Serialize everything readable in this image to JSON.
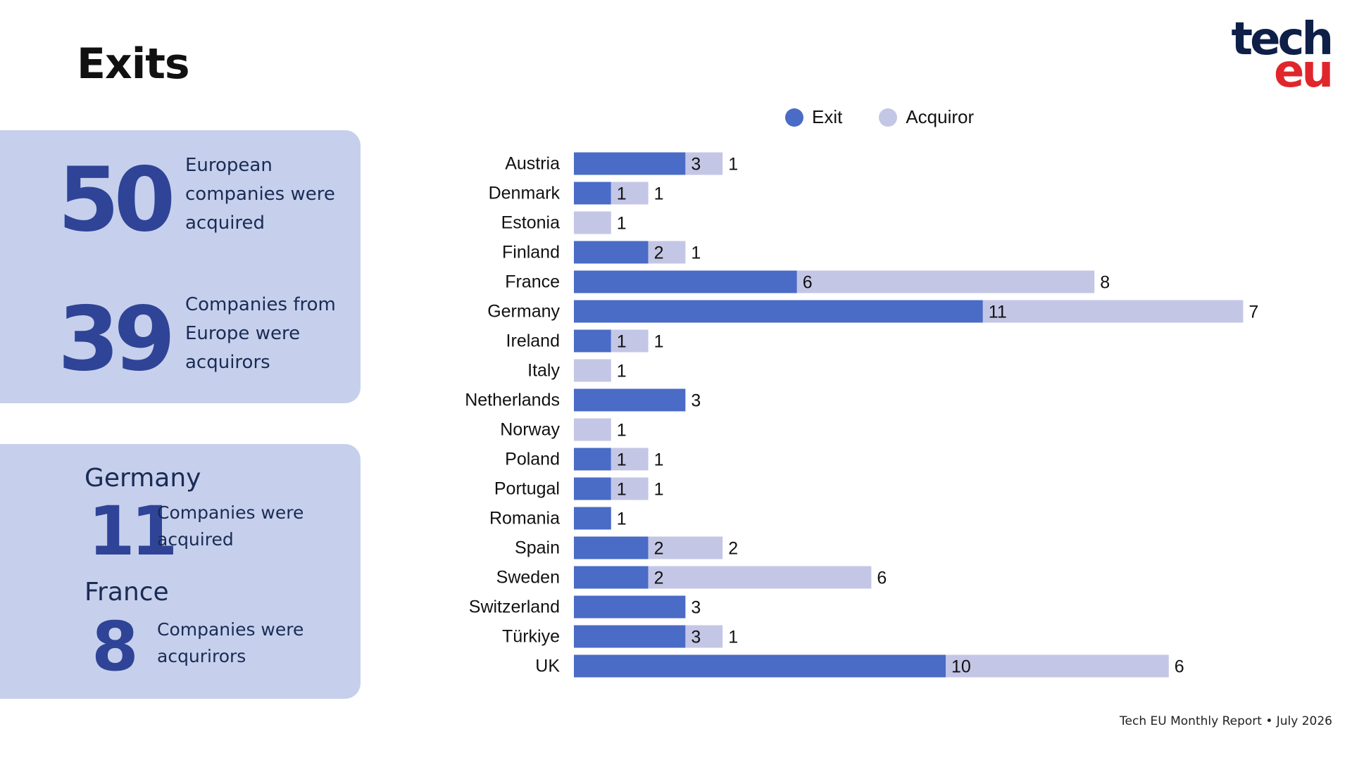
{
  "page": {
    "title": "Exits",
    "logo_line1": "tech",
    "logo_line2": "eu",
    "footer": "Tech EU Monthly Report • July 2026"
  },
  "stats": {
    "acquired_number": "50",
    "acquired_text": "European companies were acquired",
    "acquirors_number": "39",
    "acquirors_text": "Companies from Europe were acquirors",
    "top1_country": "Germany",
    "top1_number": "11",
    "top1_text": "Companies were acquired",
    "top2_country": "France",
    "top2_number": "8",
    "top2_text": "Companies were acqurirors"
  },
  "colors": {
    "exit": "#4a6bc6",
    "acquiror": "#c4c6e6",
    "panel": "#c6d0ec",
    "accent_number": "#2f4497"
  },
  "chart_data": {
    "type": "bar",
    "orientation": "horizontal",
    "stacked": true,
    "categories": [
      "Austria",
      "Denmark",
      "Estonia",
      "Finland",
      "France",
      "Germany",
      "Ireland",
      "Italy",
      "Netherlands",
      "Norway",
      "Poland",
      "Portugal",
      "Romania",
      "Spain",
      "Sweden",
      "Switzerland",
      "Türkiye",
      "UK"
    ],
    "series": [
      {
        "name": "Exit",
        "values": [
          3,
          1,
          0,
          2,
          6,
          11,
          1,
          0,
          3,
          0,
          1,
          1,
          1,
          2,
          2,
          3,
          3,
          10
        ]
      },
      {
        "name": "Acquiror",
        "values": [
          1,
          1,
          1,
          1,
          8,
          7,
          1,
          1,
          0,
          1,
          1,
          1,
          0,
          2,
          6,
          0,
          1,
          6
        ]
      }
    ],
    "legend": [
      "Exit",
      "Acquiror"
    ],
    "legend_position": "top",
    "grid": false
  }
}
